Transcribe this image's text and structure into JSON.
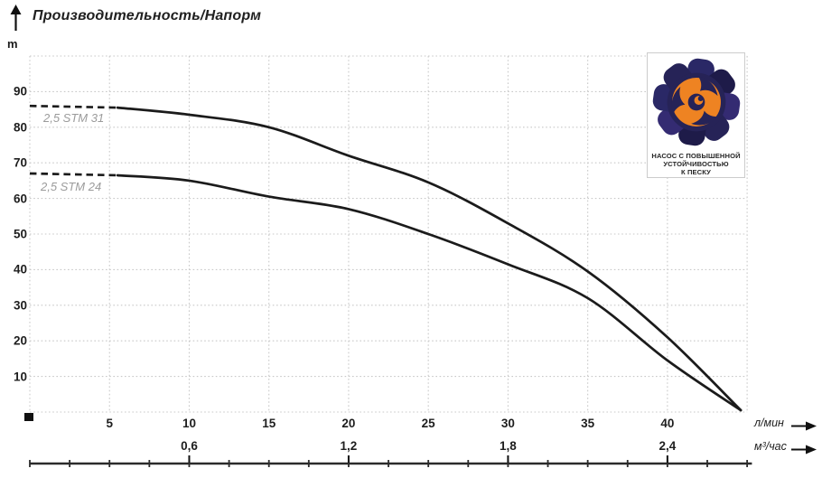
{
  "title": "Производительность/Напорм",
  "y_unit": "m",
  "x_units": {
    "primary": "л/мин",
    "secondary": "м³/час"
  },
  "badge": {
    "lines": [
      "НАСОС С ПОВЫШЕННОЙ",
      "УСТОЙЧИВОСТЬЮ",
      "К ПЕСКУ"
    ]
  },
  "colors": {
    "curve": "#1b1b1b",
    "grid": "#c9c9c9",
    "series_label": "#9b9b9b",
    "badge_navy": "#262357",
    "badge_navy_dark": "#1e1b49",
    "badge_purple": "#342b72",
    "badge_orange": "#ee8322"
  },
  "chart_data": {
    "type": "line",
    "title": "Производительность/Напорм",
    "ylabel": "m",
    "xlabel_primary": "л/мин",
    "xlabel_secondary": "м³/час",
    "ylim": [
      0,
      100
    ],
    "xlim": [
      0,
      45
    ],
    "grid": true,
    "y_grid_step": 10,
    "x_grid_step": 5,
    "y_tick_labels": [
      {
        "label": "90",
        "m": 90
      },
      {
        "label": "80",
        "m": 80
      },
      {
        "label": "70",
        "m": 70
      },
      {
        "label": "60",
        "m": 60
      },
      {
        "label": "50",
        "m": 50
      },
      {
        "label": "40",
        "m": 40
      },
      {
        "label": "30",
        "m": 30
      },
      {
        "label": "20",
        "m": 20
      },
      {
        "label": "10",
        "m": 10
      }
    ],
    "x_ticks_primary": [
      {
        "label": "5",
        "v": 5
      },
      {
        "label": "10",
        "v": 10
      },
      {
        "label": "15",
        "v": 15
      },
      {
        "label": "20",
        "v": 20
      },
      {
        "label": "25",
        "v": 25
      },
      {
        "label": "30",
        "v": 30
      },
      {
        "label": "35",
        "v": 35
      },
      {
        "label": "40",
        "v": 40
      }
    ],
    "x_ticks_secondary": [
      {
        "label": "0,6",
        "v": 10
      },
      {
        "label": "1,2",
        "v": 20
      },
      {
        "label": "1,8",
        "v": 30
      },
      {
        "label": "2,4",
        "v": 40
      }
    ],
    "secondary_scale_minor_step_lmin": 2.5,
    "secondary_scale_end_lmin": 45.3,
    "series": [
      {
        "name": "2,5 STM 31",
        "dash_lead": [
          [
            0,
            86
          ],
          [
            5.5,
            85.5
          ]
        ],
        "points": [
          [
            5.5,
            85.5
          ],
          [
            10,
            83.5
          ],
          [
            15,
            80
          ],
          [
            20,
            72
          ],
          [
            25,
            64.5
          ],
          [
            30,
            53
          ],
          [
            35,
            39.5
          ],
          [
            40,
            21
          ],
          [
            44.6,
            0.5
          ]
        ]
      },
      {
        "name": "2,5 STM 24",
        "dash_lead": [
          [
            0,
            67
          ],
          [
            5.5,
            66.5
          ]
        ],
        "points": [
          [
            5.5,
            66.5
          ],
          [
            10,
            65
          ],
          [
            15,
            60.5
          ],
          [
            20,
            57
          ],
          [
            25,
            50
          ],
          [
            30,
            41.5
          ],
          [
            35,
            32
          ],
          [
            40,
            14.5
          ],
          [
            44.6,
            0.5
          ]
        ]
      }
    ]
  }
}
